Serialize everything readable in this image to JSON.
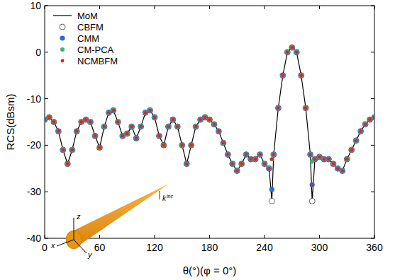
{
  "chart_data": {
    "type": "line",
    "x_label": "θ(°)(φ = 0°)",
    "y_label": "RCS(dBsm)",
    "xlim": [
      0,
      360
    ],
    "xticks": [
      0,
      60,
      120,
      180,
      240,
      300,
      360
    ],
    "ylim": [
      -40,
      10
    ],
    "yticks": [
      -40,
      -30,
      -20,
      -10,
      0,
      10
    ],
    "grid": false,
    "legend": "upper left",
    "annotations": [
      {
        "text": "z"
      },
      {
        "text": "x"
      },
      {
        "text": "y"
      },
      {
        "text": "k"
      },
      {
        "text": "inc"
      }
    ],
    "x": [
      0,
      5,
      10,
      15,
      20,
      25,
      30,
      35,
      40,
      45,
      50,
      55,
      60,
      65,
      70,
      75,
      80,
      85,
      90,
      95,
      100,
      105,
      110,
      115,
      120,
      125,
      130,
      135,
      140,
      145,
      150,
      155,
      160,
      165,
      170,
      175,
      180,
      185,
      190,
      195,
      200,
      205,
      210,
      215,
      220,
      225,
      230,
      235,
      240,
      245,
      248,
      250,
      255,
      260,
      265,
      270,
      275,
      280,
      285,
      290,
      292,
      295,
      300,
      305,
      310,
      315,
      320,
      325,
      330,
      335,
      340,
      345,
      350,
      355,
      360
    ],
    "series": [
      {
        "name": "MoM",
        "type": "line",
        "color": "#000000",
        "line_style": "solid",
        "marker": "none",
        "values": [
          -14.5,
          -14,
          -15,
          -17,
          -21,
          -24,
          -21,
          -17,
          -15,
          -14.5,
          -15,
          -18,
          -20.5,
          -16,
          -13,
          -12.5,
          -15,
          -18,
          -17.5,
          -16,
          -18.5,
          -16,
          -13,
          -12.5,
          -14,
          -18,
          -20,
          -16,
          -14.5,
          -16,
          -20,
          -24,
          -20,
          -16,
          -14.5,
          -14,
          -14.5,
          -15.5,
          -17,
          -19.5,
          -22,
          -24,
          -25.5,
          -24,
          -22,
          -23,
          -23,
          -22,
          -24,
          -25,
          -32,
          -22,
          -12,
          -5,
          0,
          1,
          0,
          -5,
          -12,
          -22,
          -32,
          -23,
          -22.5,
          -23,
          -23,
          -24,
          -25,
          -25.5,
          -23,
          -21,
          -19,
          -17,
          -15.5,
          -14.5,
          -14
        ]
      },
      {
        "name": "CBFM",
        "type": "scatter",
        "color": "#000000",
        "marker": "open-circle",
        "values": [
          -14.5,
          -14,
          -15,
          -17,
          -21,
          -24,
          -21,
          -17,
          -15,
          -14.5,
          -15,
          -18,
          -20.5,
          -16,
          -13,
          -12.5,
          -15,
          -18,
          -17.5,
          -16,
          -18.5,
          -16,
          -13,
          -12.5,
          -14,
          -18,
          -20,
          -16,
          -14.5,
          -16,
          -20,
          -24,
          -20,
          -16,
          -14.5,
          -14,
          -14.5,
          -15.5,
          -17,
          -19.5,
          -22,
          -24,
          -25.5,
          -24,
          -22,
          -23,
          -23,
          -22,
          -24,
          -25,
          -32,
          -22,
          -12,
          -5,
          0,
          1,
          0,
          -5,
          -12,
          -22,
          -32,
          -23,
          -22.5,
          -23,
          -23,
          -24,
          -25,
          -25.5,
          -23,
          -21,
          -19,
          -17,
          -15.5,
          -14.5,
          -14
        ]
      },
      {
        "name": "CMM",
        "type": "scatter",
        "color": "#1f6fe0",
        "marker": "circle",
        "values": [
          -14.5,
          -14,
          -15,
          -17,
          -21,
          -24,
          -21,
          -17,
          -15,
          -14.5,
          -15,
          -18,
          -20.5,
          -16,
          -13,
          -12.5,
          -15,
          -18,
          -17.5,
          -16,
          -18.5,
          -16,
          -13,
          -12.5,
          -14,
          -18,
          -20,
          -16,
          -14.5,
          -16,
          -20,
          -24,
          -20,
          -16,
          -14.5,
          -14,
          -14.5,
          -15.5,
          -17,
          -19.5,
          -22,
          -24,
          -25.5,
          -24,
          -22,
          -23,
          -23,
          -22,
          -24,
          -25,
          -29.5,
          -22,
          -12,
          -5,
          0,
          1,
          0,
          -5,
          -12,
          -22,
          -28.5,
          -23,
          -22.5,
          -23,
          -23,
          -24,
          -25,
          -25.5,
          -23,
          -21,
          -19,
          -17,
          -15.5,
          -14.5,
          -14
        ]
      },
      {
        "name": "CM-PCA",
        "type": "scatter",
        "color": "#3cb371",
        "marker": "circle",
        "values": [
          -14.5,
          -14,
          -15,
          -17,
          -21,
          -24,
          -21,
          -17,
          -15,
          -14.5,
          -15,
          -18,
          -20.5,
          -16,
          -13,
          -12.5,
          -15,
          -18,
          -17.5,
          -16,
          -18.5,
          -16,
          -13,
          -12.5,
          -14,
          -18,
          -20,
          -16,
          -14.5,
          -16,
          -20,
          -24,
          -20,
          -16,
          -14.5,
          -14,
          -14.5,
          -15.5,
          -17,
          -19.5,
          -22,
          -24,
          -25.5,
          -24,
          -22,
          -23,
          -23,
          -22,
          -24,
          -25,
          -23,
          -22,
          -12,
          -5,
          0,
          1,
          0,
          -5,
          -12,
          -22,
          -23.5,
          -23,
          -22.5,
          -23,
          -23,
          -24,
          -25,
          -25.5,
          -23,
          -21,
          -19,
          -17,
          -15.5,
          -14.5,
          -14
        ]
      },
      {
        "name": "NCMBFM",
        "type": "scatter",
        "color": "#e8201e",
        "marker": "circle",
        "values": [
          -14.5,
          -14,
          -15,
          -17,
          -21,
          -24,
          -21,
          -17,
          -15,
          -14.5,
          -15,
          -18,
          -20.5,
          -16,
          -13,
          -12.5,
          -15,
          -18,
          -17.5,
          -16,
          -18.5,
          -16,
          -13,
          -12.5,
          -14,
          -18,
          -20,
          -16,
          -14.5,
          -16,
          -20,
          -24,
          -20,
          -16,
          -14.5,
          -14,
          -14.5,
          -15.5,
          -17,
          -19.5,
          -22,
          -24,
          -25.5,
          -24,
          -22,
          -23,
          -23,
          -22,
          -24,
          -25,
          -23,
          -22,
          -12,
          -5,
          0,
          1,
          0,
          -5,
          -12,
          -22,
          -28.5,
          -23,
          -22.5,
          -23,
          -23,
          -24,
          -25,
          -25.5,
          -23,
          -21,
          -19,
          -17,
          -15.5,
          -14.5,
          -14
        ]
      }
    ]
  }
}
